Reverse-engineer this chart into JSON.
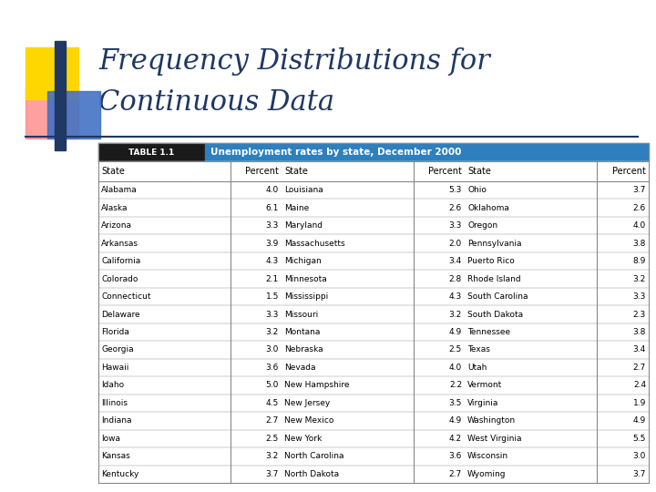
{
  "title_line1": "Frequency Distributions for",
  "title_line2": "Continuous Data",
  "title_color": "#1F3864",
  "title_fontsize": 22,
  "table_header_label": "TABLE 1.1",
  "table_header_title": "Unemployment rates by state, December 2000",
  "table_header_bg": "#1a1a1a",
  "table_header_title_bg": "#2e7fbd",
  "table_header_text_color": "#ffffff",
  "col_headers": [
    "State",
    "Percent",
    "State",
    "Percent",
    "State",
    "Percent"
  ],
  "col1": [
    [
      "Alabama",
      "4.0"
    ],
    [
      "Alaska",
      "6.1"
    ],
    [
      "Arizona",
      "3.3"
    ],
    [
      "Arkansas",
      "3.9"
    ],
    [
      "California",
      "4.3"
    ],
    [
      "Colorado",
      "2.1"
    ],
    [
      "Connecticut",
      "1.5"
    ],
    [
      "Delaware",
      "3.3"
    ],
    [
      "Florida",
      "3.2"
    ],
    [
      "Georgia",
      "3.0"
    ],
    [
      "Hawaii",
      "3.6"
    ],
    [
      "Idaho",
      "5.0"
    ],
    [
      "Illinois",
      "4.5"
    ],
    [
      "Indiana",
      "2.7"
    ],
    [
      "Iowa",
      "2.5"
    ],
    [
      "Kansas",
      "3.2"
    ],
    [
      "Kentucky",
      "3.7"
    ]
  ],
  "col2": [
    [
      "Louisiana",
      "5.3"
    ],
    [
      "Maine",
      "2.6"
    ],
    [
      "Maryland",
      "3.3"
    ],
    [
      "Massachusetts",
      "2.0"
    ],
    [
      "Michigan",
      "3.4"
    ],
    [
      "Minnesota",
      "2.8"
    ],
    [
      "Mississippi",
      "4.3"
    ],
    [
      "Missouri",
      "3.2"
    ],
    [
      "Montana",
      "4.9"
    ],
    [
      "Nebraska",
      "2.5"
    ],
    [
      "Nevada",
      "4.0"
    ],
    [
      "New Hampshire",
      "2.2"
    ],
    [
      "New Jersey",
      "3.5"
    ],
    [
      "New Mexico",
      "4.9"
    ],
    [
      "New York",
      "4.2"
    ],
    [
      "North Carolina",
      "3.6"
    ],
    [
      "North Dakota",
      "2.7"
    ]
  ],
  "col3": [
    [
      "Ohio",
      "3.7"
    ],
    [
      "Oklahoma",
      "2.6"
    ],
    [
      "Oregon",
      "4.0"
    ],
    [
      "Pennsylvania",
      "3.8"
    ],
    [
      "Puerto Rico",
      "8.9"
    ],
    [
      "Rhode Island",
      "3.2"
    ],
    [
      "South Carolina",
      "3.3"
    ],
    [
      "South Dakota",
      "2.3"
    ],
    [
      "Tennessee",
      "3.8"
    ],
    [
      "Texas",
      "3.4"
    ],
    [
      "Utah",
      "2.7"
    ],
    [
      "Vermont",
      "2.4"
    ],
    [
      "Virginia",
      "1.9"
    ],
    [
      "Washington",
      "4.9"
    ],
    [
      "West Virginia",
      "5.5"
    ],
    [
      "Wisconsin",
      "3.0"
    ],
    [
      "Wyoming",
      "3.7"
    ]
  ],
  "slide_bg": "#ffffff",
  "table_border_color": "#888888",
  "row_text_color": "#000000",
  "logo_yellow": "#FFD700",
  "logo_blue_dark": "#1F3864",
  "logo_blue_light": "#4472C4",
  "logo_pink": "#FF8080"
}
